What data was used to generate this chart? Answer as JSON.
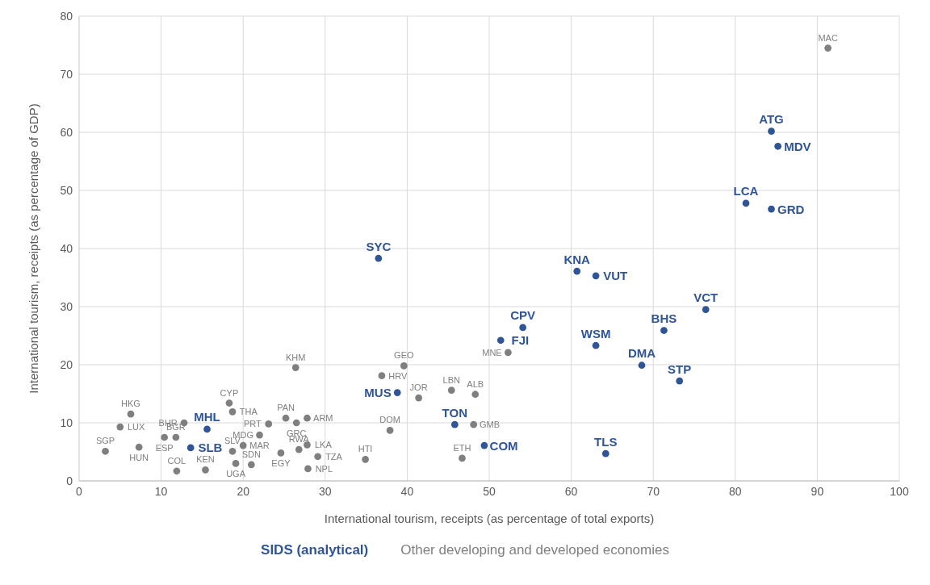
{
  "chart_data": {
    "type": "scatter",
    "xlabel": "International tourism, receipts (as percentage of total exports)",
    "ylabel": "International tourism, receipts (as percentage of GDP)",
    "xlim": [
      0,
      100
    ],
    "xticks": [
      0,
      10,
      20,
      30,
      40,
      50,
      60,
      70,
      80,
      90,
      100
    ],
    "ylim": [
      0,
      80
    ],
    "yticks": [
      0,
      10,
      20,
      30,
      40,
      50,
      60,
      70,
      80
    ],
    "grid": true,
    "marker": "circle",
    "series": [
      {
        "name": "SIDS (analytical)",
        "color": "#2f5597",
        "x": [
          36.5,
          60.7,
          63.0,
          84.4,
          85.2,
          81.3,
          84.4,
          76.4,
          71.3,
          54.1,
          51.4,
          63.0,
          68.6,
          73.2,
          38.8,
          45.8,
          49.4,
          64.2,
          15.6,
          13.6
        ],
        "values": [
          38.3,
          36.1,
          35.3,
          60.2,
          57.6,
          47.8,
          46.8,
          29.5,
          25.9,
          26.4,
          24.2,
          23.3,
          19.9,
          17.2,
          15.2,
          9.7,
          6.1,
          4.7,
          8.9,
          5.7
        ],
        "value_labels": [
          "SYC",
          "KNA",
          "VUT",
          "ATG",
          "MDV",
          "LCA",
          "GRD",
          "VCT",
          "BHS",
          "CPV",
          "FJI",
          "WSM",
          "DMA",
          "STP",
          "MUS",
          "TON",
          "COM",
          "TLS",
          "MHL",
          "SLB"
        ]
      },
      {
        "name": "Other developing and developed economies",
        "color": "#7f7f7f",
        "x": [
          91.3,
          52.3,
          39.6,
          36.9,
          26.4,
          45.4,
          48.3,
          41.4,
          37.9,
          34.9,
          46.7,
          48.1,
          18.3,
          18.7,
          23.1,
          25.2,
          27.8,
          26.5,
          22.0,
          24.6,
          26.8,
          27.8,
          29.1,
          27.9,
          6.3,
          5.0,
          12.8,
          10.4,
          11.8,
          3.2,
          19.1,
          21.0,
          11.9,
          15.4,
          18.7,
          20.0,
          7.3
        ],
        "values": [
          74.5,
          22.1,
          19.8,
          18.1,
          19.5,
          15.6,
          14.9,
          14.3,
          8.7,
          3.7,
          3.9,
          9.7,
          13.4,
          11.9,
          9.8,
          10.8,
          10.8,
          10.0,
          7.9,
          4.8,
          5.4,
          6.2,
          4.2,
          2.1,
          11.5,
          9.3,
          10.0,
          7.5,
          7.5,
          5.1,
          3.0,
          2.8,
          1.7,
          1.9,
          5.1,
          6.1,
          5.8
        ],
        "value_labels": [
          "MAC",
          "MNE",
          "GEO",
          "HRV",
          "KHM",
          "LBN",
          "ALB",
          "JOR",
          "DOM",
          "HTI",
          "ETH",
          "GMB",
          "CYP",
          "THA",
          "PRT",
          "PAN",
          "ARM",
          "GRC",
          "MAR",
          "EGY",
          "RWA",
          "LKA",
          "TZA",
          "NPL",
          "HKG",
          "LUX",
          "BHR",
          "ESP",
          "BGR",
          "SGP",
          "UGA",
          "SDN",
          "COL",
          "KEN",
          "SLV",
          "MDG",
          "HUN"
        ]
      }
    ]
  }
}
